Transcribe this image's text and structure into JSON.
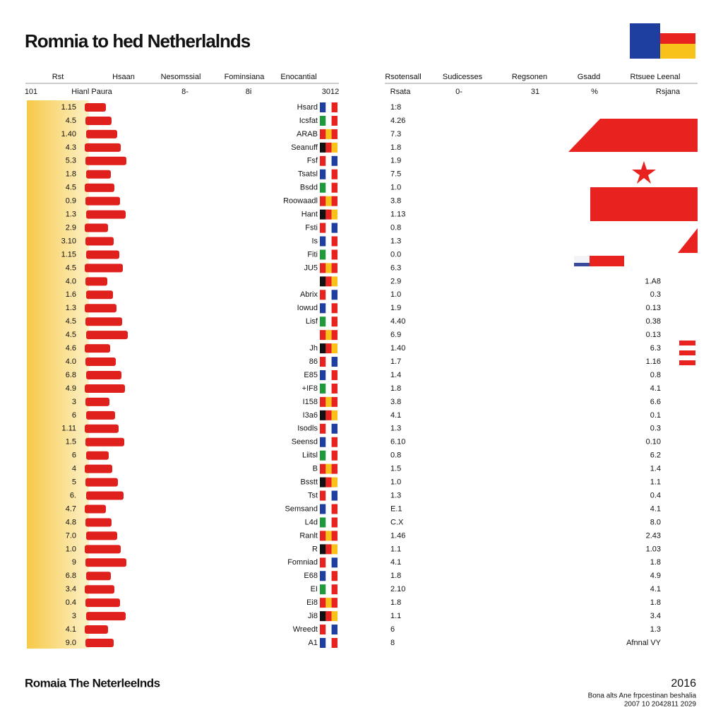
{
  "header": {
    "title": "Romnia to hed Netherlalnds"
  },
  "left_table": {
    "columns": [
      "Rst",
      "Hsaan",
      "Nesomssial",
      "Fominsiana",
      "Enocantial"
    ],
    "subheader": [
      "101",
      "Hianl Paura",
      "8-",
      "8i",
      "3012"
    ]
  },
  "right_table": {
    "columns": [
      "Rsotensall",
      "Sudicesses",
      "Regsonen",
      "Gsadd",
      "Rtsuee Leenal"
    ],
    "subheader": [
      "Rsata",
      "0-",
      "31",
      "%",
      "Rsjana"
    ]
  },
  "rows": [
    {
      "num": "1.15",
      "name": "Hsard",
      "mid": "1:8"
    },
    {
      "num": "4.5",
      "name": "Icsfat",
      "mid": "4.26"
    },
    {
      "num": "1.40",
      "name": "ARAB",
      "mid": "7.3"
    },
    {
      "num": "4.3",
      "name": "Seanuff",
      "mid": "1.8"
    },
    {
      "num": "5.3",
      "name": "Fsf",
      "mid": "1.9"
    },
    {
      "num": "1.8",
      "name": "Tsatsl",
      "mid": "7.5"
    },
    {
      "num": "4.5",
      "name": "Bsdd",
      "mid": "1.0"
    },
    {
      "num": "0.9",
      "name": "Roowaadl",
      "mid": "3.8"
    },
    {
      "num": "1.3",
      "name": "Hant",
      "mid": "1.13"
    },
    {
      "num": "2.9",
      "name": "Fsti",
      "mid": "0.8"
    },
    {
      "num": "3.10",
      "name": "Is",
      "mid": "1.3"
    },
    {
      "num": "1.15",
      "name": "Fiti",
      "mid": "0.0"
    },
    {
      "num": "4.5",
      "name": "JU5",
      "mid": "6.3"
    },
    {
      "num": "4.0",
      "mid": "2.9",
      "right": "1.A8"
    },
    {
      "num": "1.6",
      "name": "Abrix",
      "mid": "1.0",
      "right": "0.3"
    },
    {
      "num": "1.3",
      "name": "Iowud",
      "mid": "1.9",
      "right": "0.13"
    },
    {
      "num": "4.5",
      "name": "Lisf",
      "mid": "4.40",
      "right": "0.38"
    },
    {
      "num": "4.5",
      "mid": "6.9",
      "right": "0.13"
    },
    {
      "num": "4.6",
      "name": "Jh",
      "mid": "1.40",
      "right": "6.3"
    },
    {
      "num": "4.0",
      "name": "86",
      "mid": "1.7",
      "right": "1.16"
    },
    {
      "num": "6.8",
      "name": "E85",
      "mid": "1.4",
      "right": "0.8"
    },
    {
      "num": "4.9",
      "name": "+IF8",
      "mid": "1.8",
      "right": "4.1"
    },
    {
      "num": "3",
      "name": "I158",
      "mid": "3.8",
      "right": "6.6"
    },
    {
      "num": "6",
      "name": "I3a6",
      "mid": "4.1",
      "right": "0.1"
    },
    {
      "num": "1.11",
      "name": "Isodls",
      "mid": "1.3",
      "right": "0.3"
    },
    {
      "num": "1.5",
      "name": "Seensd",
      "mid": "6.10",
      "right": "0.10"
    },
    {
      "num": "6",
      "name": "Liitsl",
      "mid": "0.8",
      "right": "6.2"
    },
    {
      "num": "4",
      "name": "B",
      "mid": "1.5",
      "right": "1.4"
    },
    {
      "num": "5",
      "name": "Bsstt",
      "mid": "1.0",
      "right": "1.1"
    },
    {
      "num": "6.",
      "name": "Tst",
      "mid": "1.3",
      "right": "0.4"
    },
    {
      "num": "4.7",
      "name": "Semsand",
      "mid": "E.1",
      "right": "4.1"
    },
    {
      "num": "4.8",
      "name": "L4d",
      "mid": "C.X",
      "right": "8.0"
    },
    {
      "num": "7.0",
      "name": "Ranlt",
      "mid": "1.46",
      "right": "2.43"
    },
    {
      "num": "1.0",
      "name": "R",
      "mid": "1.1",
      "right": "1.03"
    },
    {
      "num": "9",
      "name": "Fomniad",
      "mid": "4.1",
      "right": "1.8"
    },
    {
      "num": "6.8",
      "name": "E68",
      "mid": "1.8",
      "right": "4.9"
    },
    {
      "num": "3.4",
      "name": "EI",
      "mid": "2.10",
      "right": "4.1"
    },
    {
      "num": "0.4",
      "name": "Ei8",
      "mid": "1.8",
      "right": "1.8"
    },
    {
      "num": "3",
      "name": "Ji8",
      "mid": "1.1",
      "right": "3.4"
    },
    {
      "num": "4.1",
      "name": "Wreedt",
      "mid": "6",
      "right": "1.3"
    },
    {
      "num": "9.0",
      "name": "A1",
      "mid": "8",
      "right": "Afnnal VY"
    }
  ],
  "footer": {
    "title": "Romaia The Neterleelnds",
    "year": "2016",
    "source": "Bona alts Ane frpcestinan beshalia",
    "dates": "2007 10 2042811 2029"
  }
}
